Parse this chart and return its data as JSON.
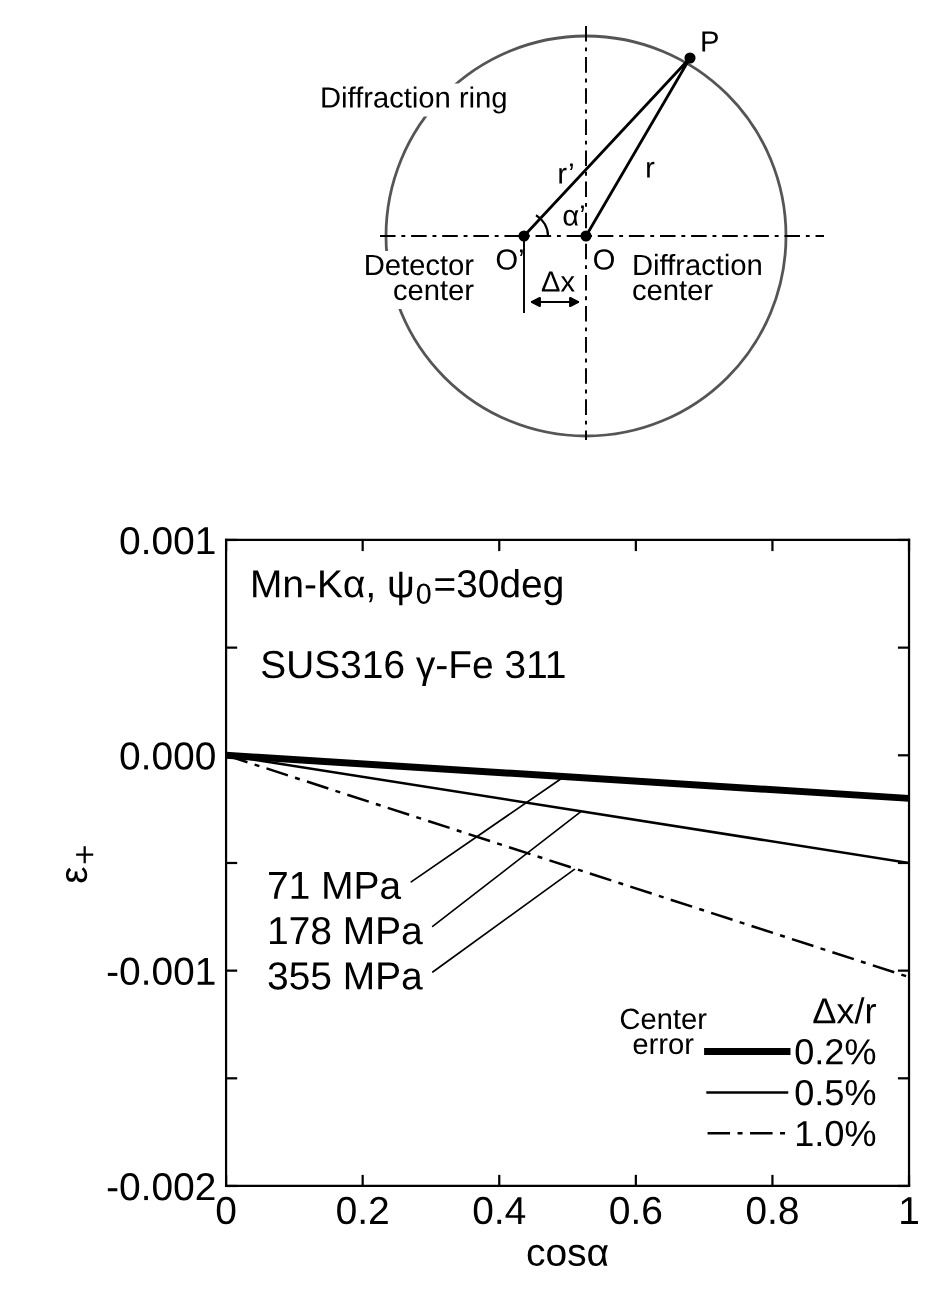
{
  "chart_data": {
    "type": "line",
    "title": "Mn-Kα, ψ$_{0}$=30deg",
    "subtitle": "SUS316 γ-Fe 311",
    "xlabel": "cosα",
    "ylabel": "ε$_{+}$",
    "legend_title": "Δx/r",
    "x": [
      0,
      1
    ],
    "series": [
      {
        "name": "0.2%",
        "color": "#000000",
        "values": [
          0,
          -0.0002
        ],
        "line_style": "solid"
      },
      {
        "name": "0.5%",
        "color": "#000000",
        "values": [
          0,
          -0.0005
        ],
        "line_style": "solid"
      },
      {
        "name": "1.0%",
        "color": "#000000",
        "values": [
          0,
          -0.00103
        ],
        "line_style": "dashed"
      }
    ],
    "xlim": [
      0,
      1
    ],
    "ylim": [
      -0.002,
      0.001
    ],
    "xticks": [
      {
        "value": 0,
        "label": "0"
      },
      0.2,
      0.4,
      0.6,
      0.8,
      {
        "value": 1,
        "label": "1"
      }
    ],
    "yticks": [
      {
        "value": -0.002,
        "label": "-0.002"
      },
      {
        "value": -0.0015,
        "label": null
      },
      {
        "value": -0.001,
        "label": "-0.001"
      },
      {
        "value": -0.0005,
        "label": null
      },
      {
        "value": 0,
        "label": "0.000"
      },
      {
        "value": 0.0005,
        "label": null
      },
      {
        "value": 0.001,
        "label": "0.001"
      }
    ],
    "grid": false,
    "legend": "bottom right",
    "annotations": [
      "P",
      "Diffraction ring",
      "r’",
      "r",
      "α’",
      "Detector\ncenter",
      "O’",
      "O",
      "Diffraction\ncenter",
      "Δx",
      "Center\nerror",
      {
        "text": "71 MPa",
        "x": 0.49,
        "y": -0.00011
      },
      {
        "text": "178 MPa",
        "x": 0.52,
        "y": -0.00026
      },
      {
        "text": "355 MPa",
        "x": 0.51,
        "y": -0.00053
      }
    ]
  }
}
